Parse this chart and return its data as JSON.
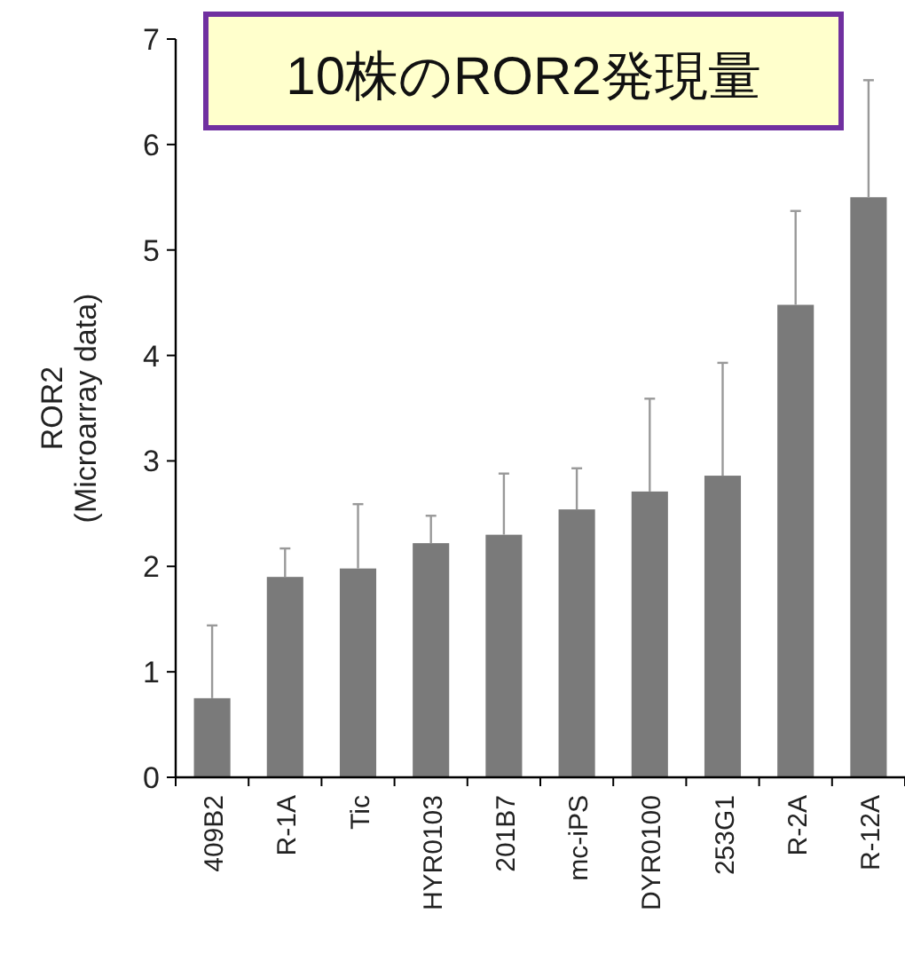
{
  "chart_data": {
    "type": "bar",
    "title": "10株のROR2発現量",
    "ylabel": "ROR2\n(Microarray data)",
    "categories": [
      "409B2",
      "R-1A",
      "Tic",
      "HYR0103",
      "201B7",
      "mc-iPS",
      "DYR0100",
      "253G1",
      "R-2A",
      "R-12A"
    ],
    "values": [
      0.75,
      1.9,
      1.98,
      2.22,
      2.3,
      2.54,
      2.71,
      2.86,
      4.48,
      5.5
    ],
    "errors": [
      [
        0.75,
        1.44
      ],
      [
        1.9,
        2.17
      ],
      [
        1.98,
        2.59
      ],
      [
        2.22,
        2.48
      ],
      [
        2.3,
        2.88
      ],
      [
        2.54,
        2.93
      ],
      [
        2.71,
        3.59
      ],
      [
        2.86,
        3.93
      ],
      [
        4.48,
        5.37
      ],
      [
        5.5,
        6.61
      ]
    ],
    "color": "#7a7a7a",
    "ylim": [
      0,
      7
    ],
    "yticks": [
      0,
      1,
      2,
      3,
      4,
      5,
      6,
      7
    ],
    "grid": false
  }
}
